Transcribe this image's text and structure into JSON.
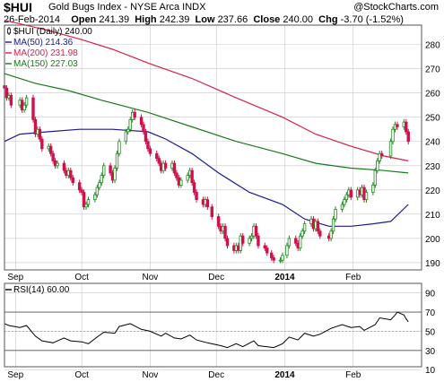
{
  "header": {
    "symbol": "$HUI",
    "name": "Gold Bugs Index - NYSE Arca INDX",
    "source_prefix": "@",
    "source": "StockCharts.com",
    "date": "26-Feb-2014",
    "open_label": "Open",
    "open": "241.39",
    "high_label": "High",
    "high": "242.39",
    "low_label": "Low",
    "low": "237.66",
    "close_label": "Close",
    "close": "240.00",
    "chg_label": "Chg",
    "chg": "-3.70 (-1.52%)"
  },
  "colors": {
    "up": "#1e8a1e",
    "down": "#d0104b",
    "ma50": "#1c1c8e",
    "ma200": "#d8204a",
    "ma150": "#1a7a1a",
    "grid": "#c8c8c8",
    "rsi": "#000000"
  },
  "chart_data": [
    {
      "type": "candlestick",
      "title": "$HUI (Daily) 240.00",
      "ylim": [
        187,
        288
      ],
      "yticks": [
        190,
        200,
        210,
        220,
        230,
        240,
        250,
        260,
        270,
        280
      ],
      "x_range": [
        "2013-08-27",
        "2014-03-04"
      ],
      "x_labels": [
        {
          "label": "Sep",
          "date": "2013-09-01",
          "bold": false
        },
        {
          "label": "Oct",
          "date": "2013-10-01",
          "bold": false
        },
        {
          "label": "Nov",
          "date": "2013-11-01",
          "bold": false
        },
        {
          "label": "Dec",
          "date": "2013-12-01",
          "bold": false
        },
        {
          "label": "2014",
          "date": "2014-01-01",
          "bold": true
        },
        {
          "label": "Feb",
          "date": "2014-02-01",
          "bold": false
        }
      ],
      "legend": [
        {
          "text": "$HUI (Daily) 240.00",
          "series": "price"
        },
        {
          "text": "MA(50) 214.36",
          "series": "ma50"
        },
        {
          "text": "MA(200) 231.98",
          "series": "ma200"
        },
        {
          "text": "MA(150) 227.03",
          "series": "ma150"
        }
      ],
      "closes": [
        [
          "2013-08-27",
          262
        ],
        [
          "2013-08-28",
          258
        ],
        [
          "2013-08-29",
          259
        ],
        [
          "2013-08-30",
          255
        ],
        [
          "2013-09-03",
          257
        ],
        [
          "2013-09-04",
          253
        ],
        [
          "2013-09-05",
          255
        ],
        [
          "2013-09-06",
          258
        ],
        [
          "2013-09-09",
          249
        ],
        [
          "2013-09-10",
          243
        ],
        [
          "2013-09-11",
          245
        ],
        [
          "2013-09-12",
          241
        ],
        [
          "2013-09-13",
          237
        ],
        [
          "2013-09-16",
          238
        ],
        [
          "2013-09-17",
          235
        ],
        [
          "2013-09-18",
          232
        ],
        [
          "2013-09-19",
          230
        ],
        [
          "2013-09-20",
          231
        ],
        [
          "2013-09-23",
          228
        ],
        [
          "2013-09-24",
          226
        ],
        [
          "2013-09-25",
          228
        ],
        [
          "2013-09-26",
          225
        ],
        [
          "2013-09-27",
          223
        ],
        [
          "2013-09-30",
          220
        ],
        [
          "2013-10-01",
          219
        ],
        [
          "2013-10-02",
          213
        ],
        [
          "2013-10-03",
          214
        ],
        [
          "2013-10-04",
          216
        ],
        [
          "2013-10-07",
          218
        ],
        [
          "2013-10-08",
          221
        ],
        [
          "2013-10-09",
          223
        ],
        [
          "2013-10-10",
          226
        ],
        [
          "2013-10-11",
          230
        ],
        [
          "2013-10-14",
          227
        ],
        [
          "2013-10-15",
          224
        ],
        [
          "2013-10-16",
          229
        ],
        [
          "2013-10-17",
          235
        ],
        [
          "2013-10-18",
          240
        ],
        [
          "2013-10-21",
          244
        ],
        [
          "2013-10-22",
          245
        ],
        [
          "2013-10-23",
          249
        ],
        [
          "2013-10-24",
          252
        ],
        [
          "2013-10-25",
          250
        ],
        [
          "2013-10-28",
          247
        ],
        [
          "2013-10-29",
          244
        ],
        [
          "2013-10-30",
          240
        ],
        [
          "2013-10-31",
          237
        ],
        [
          "2013-11-01",
          235
        ],
        [
          "2013-11-04",
          233
        ],
        [
          "2013-11-05",
          231
        ],
        [
          "2013-11-06",
          228
        ],
        [
          "2013-11-07",
          231
        ],
        [
          "2013-11-08",
          229
        ],
        [
          "2013-11-11",
          231
        ],
        [
          "2013-11-12",
          227
        ],
        [
          "2013-11-13",
          225
        ],
        [
          "2013-11-14",
          222
        ],
        [
          "2013-11-15",
          224
        ],
        [
          "2013-11-18",
          226
        ],
        [
          "2013-11-19",
          228
        ],
        [
          "2013-11-20",
          223
        ],
        [
          "2013-11-21",
          219
        ],
        [
          "2013-11-22",
          216
        ],
        [
          "2013-11-25",
          214
        ],
        [
          "2013-11-26",
          216
        ],
        [
          "2013-11-27",
          213
        ],
        [
          "2013-11-29",
          209
        ],
        [
          "2013-12-02",
          205
        ],
        [
          "2013-12-03",
          203
        ],
        [
          "2013-12-04",
          205
        ],
        [
          "2013-12-05",
          200
        ],
        [
          "2013-12-06",
          197
        ],
        [
          "2013-12-09",
          195
        ],
        [
          "2013-12-10",
          197
        ],
        [
          "2013-12-11",
          195
        ],
        [
          "2013-12-12",
          201
        ],
        [
          "2013-12-13",
          198
        ],
        [
          "2013-12-16",
          200
        ],
        [
          "2013-12-17",
          201
        ],
        [
          "2013-12-18",
          205
        ],
        [
          "2013-12-19",
          201
        ],
        [
          "2013-12-20",
          197
        ],
        [
          "2013-12-23",
          196
        ],
        [
          "2013-12-24",
          194
        ],
        [
          "2013-12-26",
          192
        ],
        [
          "2013-12-27",
          191
        ],
        [
          "2013-12-30",
          191
        ],
        [
          "2013-12-31",
          193
        ],
        [
          "2014-01-02",
          197
        ],
        [
          "2014-01-03",
          200
        ],
        [
          "2014-01-06",
          198
        ],
        [
          "2014-01-07",
          196
        ],
        [
          "2014-01-08",
          201
        ],
        [
          "2014-01-09",
          203
        ],
        [
          "2014-01-10",
          206
        ],
        [
          "2014-01-13",
          208
        ],
        [
          "2014-01-14",
          204
        ],
        [
          "2014-01-15",
          207
        ],
        [
          "2014-01-16",
          203
        ],
        [
          "2014-01-17",
          201
        ],
        [
          "2014-01-21",
          200
        ],
        [
          "2014-01-22",
          203
        ],
        [
          "2014-01-23",
          208
        ],
        [
          "2014-01-24",
          212
        ],
        [
          "2014-01-27",
          214
        ],
        [
          "2014-01-28",
          216
        ],
        [
          "2014-01-29",
          218
        ],
        [
          "2014-01-30",
          220
        ],
        [
          "2014-01-31",
          217
        ],
        [
          "2014-02-03",
          220
        ],
        [
          "2014-02-04",
          218
        ],
        [
          "2014-02-05",
          221
        ],
        [
          "2014-02-06",
          216
        ],
        [
          "2014-02-07",
          219
        ],
        [
          "2014-02-10",
          222
        ],
        [
          "2014-02-11",
          228
        ],
        [
          "2014-02-12",
          232
        ],
        [
          "2014-02-13",
          235
        ],
        [
          "2014-02-14",
          234
        ],
        [
          "2014-02-18",
          240
        ],
        [
          "2014-02-19",
          245
        ],
        [
          "2014-02-20",
          247
        ],
        [
          "2014-02-21",
          246
        ],
        [
          "2014-02-24",
          248
        ],
        [
          "2014-02-25",
          244
        ],
        [
          "2014-02-26",
          240
        ]
      ],
      "ma50": [
        [
          "2013-08-27",
          240
        ],
        [
          "2013-09-03",
          243
        ],
        [
          "2013-09-16",
          244
        ],
        [
          "2013-09-30",
          245
        ],
        [
          "2013-10-15",
          245
        ],
        [
          "2013-10-31",
          244
        ],
        [
          "2013-11-08",
          241
        ],
        [
          "2013-11-20",
          235
        ],
        [
          "2013-12-02",
          227
        ],
        [
          "2013-12-16",
          219
        ],
        [
          "2013-12-31",
          214
        ],
        [
          "2014-01-10",
          208
        ],
        [
          "2014-01-21",
          205
        ],
        [
          "2014-01-31",
          205
        ],
        [
          "2014-02-10",
          206
        ],
        [
          "2014-02-18",
          207
        ],
        [
          "2014-02-26",
          214
        ]
      ],
      "ma150": [
        [
          "2013-08-27",
          268
        ],
        [
          "2013-09-10",
          264
        ],
        [
          "2013-09-25",
          261
        ],
        [
          "2013-10-10",
          257
        ],
        [
          "2013-10-31",
          252
        ],
        [
          "2013-11-20",
          246
        ],
        [
          "2013-12-10",
          240
        ],
        [
          "2013-12-31",
          235
        ],
        [
          "2014-01-15",
          231
        ],
        [
          "2014-01-31",
          229
        ],
        [
          "2014-02-15",
          228
        ],
        [
          "2014-02-26",
          227
        ]
      ],
      "ma200": [
        [
          "2013-08-27",
          290
        ],
        [
          "2013-09-15",
          286
        ],
        [
          "2013-10-01",
          282
        ],
        [
          "2013-10-15",
          278
        ],
        [
          "2013-11-01",
          272
        ],
        [
          "2013-11-20",
          266
        ],
        [
          "2013-12-10",
          258
        ],
        [
          "2013-12-31",
          250
        ],
        [
          "2014-01-15",
          243
        ],
        [
          "2014-01-31",
          238
        ],
        [
          "2014-02-15",
          234
        ],
        [
          "2014-02-26",
          232
        ]
      ]
    },
    {
      "type": "line",
      "title": "RSI(14) 60.00",
      "ylim": [
        13,
        100
      ],
      "yticks": [
        10,
        30,
        50,
        70,
        90
      ],
      "ref_lines": [
        30,
        70
      ],
      "mid_line": 50,
      "legend": [
        {
          "text": "RSI(14) 60.00",
          "series": "rsi"
        }
      ],
      "values": [
        [
          "2013-08-27",
          58
        ],
        [
          "2013-08-29",
          56
        ],
        [
          "2013-09-03",
          54
        ],
        [
          "2013-09-06",
          56
        ],
        [
          "2013-09-10",
          45
        ],
        [
          "2013-09-13",
          40
        ],
        [
          "2013-09-18",
          38
        ],
        [
          "2013-09-23",
          43
        ],
        [
          "2013-09-26",
          40
        ],
        [
          "2013-10-01",
          39
        ],
        [
          "2013-10-04",
          37
        ],
        [
          "2013-10-08",
          44
        ],
        [
          "2013-10-11",
          49
        ],
        [
          "2013-10-16",
          48
        ],
        [
          "2013-10-18",
          55
        ],
        [
          "2013-10-23",
          58
        ],
        [
          "2013-10-28",
          52
        ],
        [
          "2013-11-01",
          50
        ],
        [
          "2013-11-06",
          45
        ],
        [
          "2013-11-08",
          48
        ],
        [
          "2013-11-12",
          43
        ],
        [
          "2013-11-15",
          42
        ],
        [
          "2013-11-19",
          46
        ],
        [
          "2013-11-22",
          41
        ],
        [
          "2013-11-27",
          38
        ],
        [
          "2013-12-03",
          35
        ],
        [
          "2013-12-06",
          33
        ],
        [
          "2013-12-10",
          37
        ],
        [
          "2013-12-13",
          34
        ],
        [
          "2013-12-18",
          40
        ],
        [
          "2013-12-20",
          35
        ],
        [
          "2013-12-27",
          33
        ],
        [
          "2013-12-31",
          37
        ],
        [
          "2014-01-03",
          44
        ],
        [
          "2014-01-07",
          41
        ],
        [
          "2014-01-10",
          48
        ],
        [
          "2014-01-14",
          45
        ],
        [
          "2014-01-17",
          47
        ],
        [
          "2014-01-22",
          53
        ],
        [
          "2014-01-27",
          57
        ],
        [
          "2014-01-31",
          54
        ],
        [
          "2014-02-04",
          55
        ],
        [
          "2014-02-06",
          51
        ],
        [
          "2014-02-11",
          57
        ],
        [
          "2014-02-13",
          64
        ],
        [
          "2014-02-18",
          62
        ],
        [
          "2014-02-20",
          67
        ],
        [
          "2014-02-21",
          70
        ],
        [
          "2014-02-24",
          67
        ],
        [
          "2014-02-25",
          63
        ],
        [
          "2014-02-26",
          60
        ]
      ]
    }
  ]
}
